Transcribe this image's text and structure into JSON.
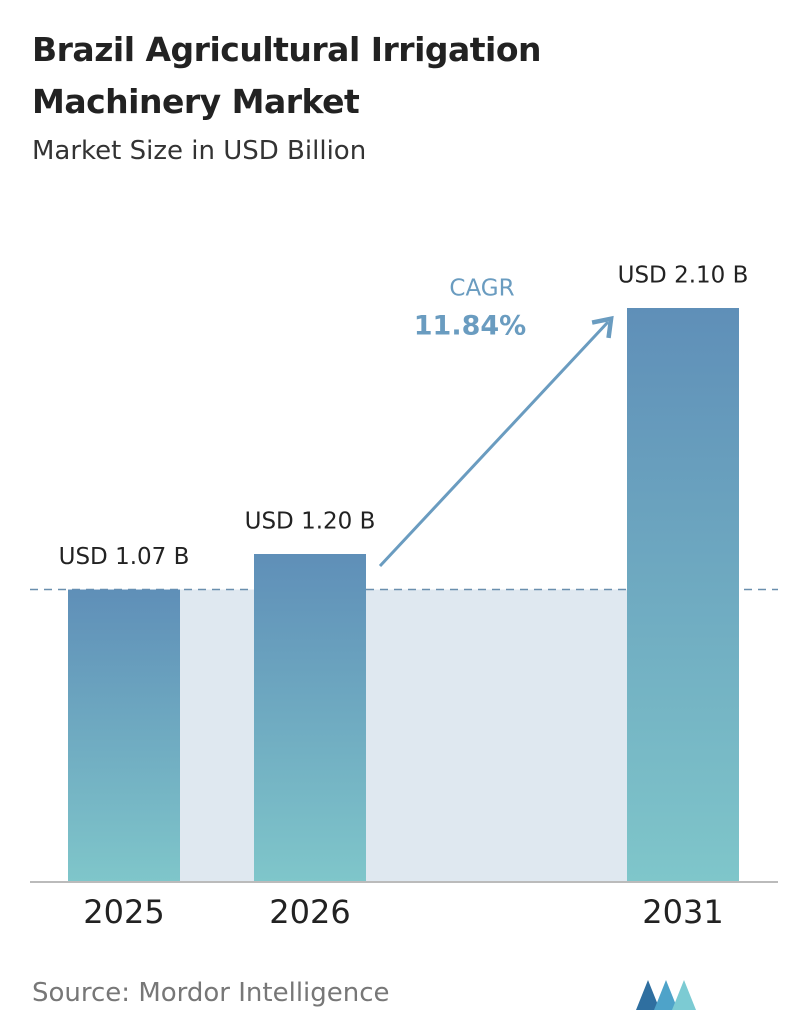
{
  "chart_data": {
    "type": "bar",
    "title": "Brazil Agricultural Irrigation Machinery Market",
    "subtitle": "Market Size in USD Billion",
    "categories": [
      "2025",
      "2026",
      "2031"
    ],
    "values": [
      1.07,
      1.2,
      2.1
    ],
    "value_labels": [
      "USD 1.07 B",
      "USD 1.20 B",
      "USD 2.10 B"
    ],
    "cagr_label": "CAGR",
    "cagr_value": "11.84%",
    "source": "Source: Mordor Intelligence"
  }
}
